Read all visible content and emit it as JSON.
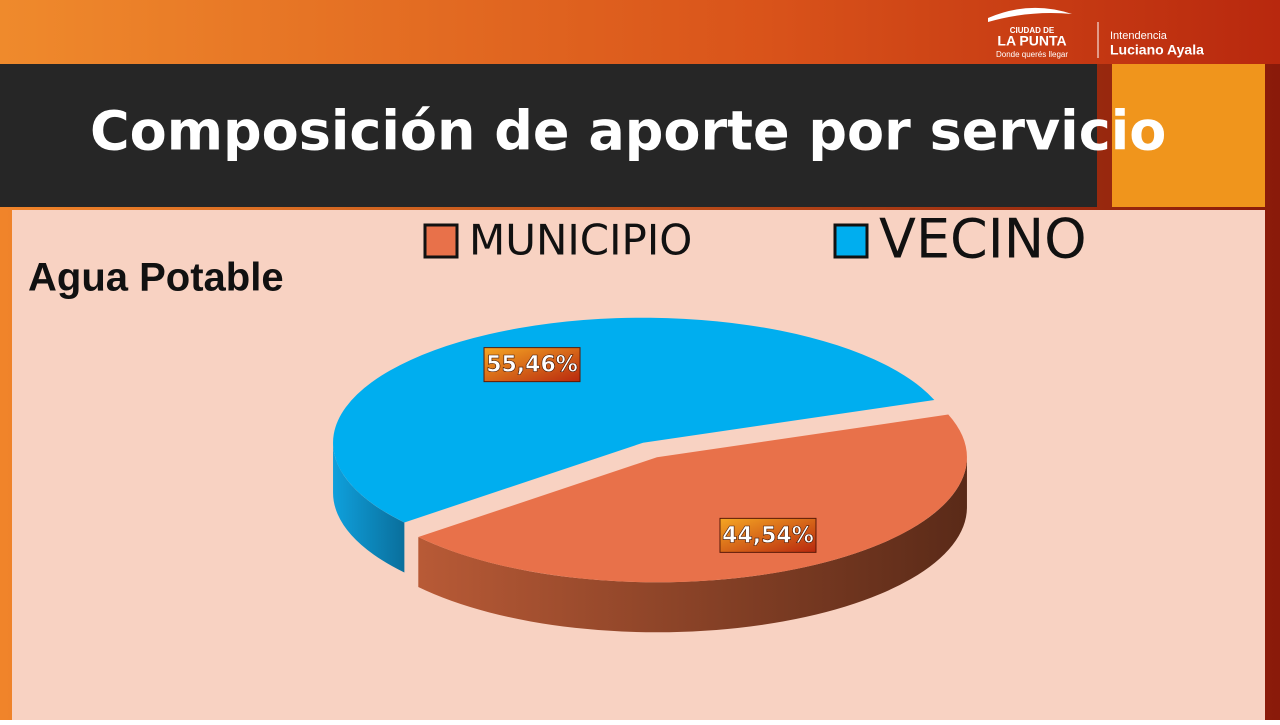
{
  "header": {
    "title": "Composición de aporte por servicio"
  },
  "logos": {
    "city_small": "CIUDAD DE",
    "city": "LA PUNTA",
    "slogan": "Donde querés llegar",
    "office": "Intendencia",
    "person": "Luciano Ayala"
  },
  "chart_data": {
    "type": "pie3d",
    "title": "Agua Potable",
    "categories": [
      "MUNICIPIO",
      "VECINO"
    ],
    "values": [
      44.54,
      55.46
    ],
    "value_labels": [
      "44,54%",
      "55,46%"
    ],
    "colors": [
      "#e8714a",
      "#00aeef"
    ]
  }
}
